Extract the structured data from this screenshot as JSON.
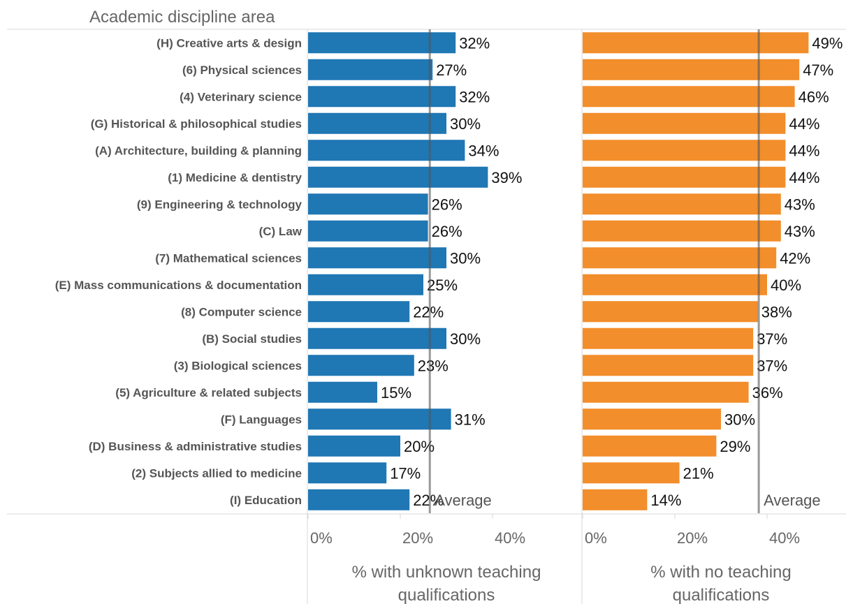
{
  "chart_data": {
    "type": "bar",
    "orientation": "horizontal",
    "row_header": "Academic discipline area",
    "categories": [
      "(H) Creative arts & design",
      "(6) Physical sciences",
      "(4) Veterinary science",
      "(G) Historical & philosophical studies",
      "(A) Architecture, building & planning",
      "(1) Medicine & dentistry",
      "(9) Engineering & technology",
      "(C) Law",
      "(7) Mathematical sciences",
      "(E) Mass communications & documentation",
      "(8) Computer science",
      "(B) Social studies",
      "(3) Biological sciences",
      "(5) Agriculture & related subjects",
      "(F) Languages",
      "(D) Business & administrative studies",
      "(2) Subjects allied to medicine",
      "(I) Education"
    ],
    "series": [
      {
        "axis_title_lines": [
          "% with unknown teaching",
          "qualifications"
        ],
        "values": [
          32,
          27,
          32,
          30,
          34,
          39,
          26,
          26,
          30,
          25,
          22,
          30,
          23,
          15,
          31,
          20,
          17,
          22
        ],
        "value_labels": [
          "32%",
          "27%",
          "32%",
          "30%",
          "34%",
          "39%",
          "26%",
          "26%",
          "30%",
          "25%",
          "22%",
          "30%",
          "23%",
          "15%",
          "31%",
          "20%",
          "17%",
          "22%"
        ],
        "color": "#1f77b4",
        "average": 26.4,
        "average_label": "Average"
      },
      {
        "axis_title_lines": [
          "% with no teaching",
          "qualifications"
        ],
        "values": [
          49,
          47,
          46,
          44,
          44,
          44,
          43,
          43,
          42,
          40,
          38,
          37,
          37,
          36,
          30,
          29,
          21,
          14
        ],
        "value_labels": [
          "49%",
          "47%",
          "46%",
          "44%",
          "44%",
          "44%",
          "43%",
          "43%",
          "42%",
          "40%",
          "38%",
          "37%",
          "37%",
          "36%",
          "30%",
          "29%",
          "21%",
          "14%"
        ],
        "color": "#f28e2b",
        "average": 38.2,
        "average_label": "Average"
      }
    ],
    "xlim": [
      0,
      50
    ],
    "xticks": [
      0,
      20,
      40
    ],
    "xtick_labels": [
      "0%",
      "20%",
      "40%"
    ],
    "grid": false,
    "legend": "none"
  }
}
